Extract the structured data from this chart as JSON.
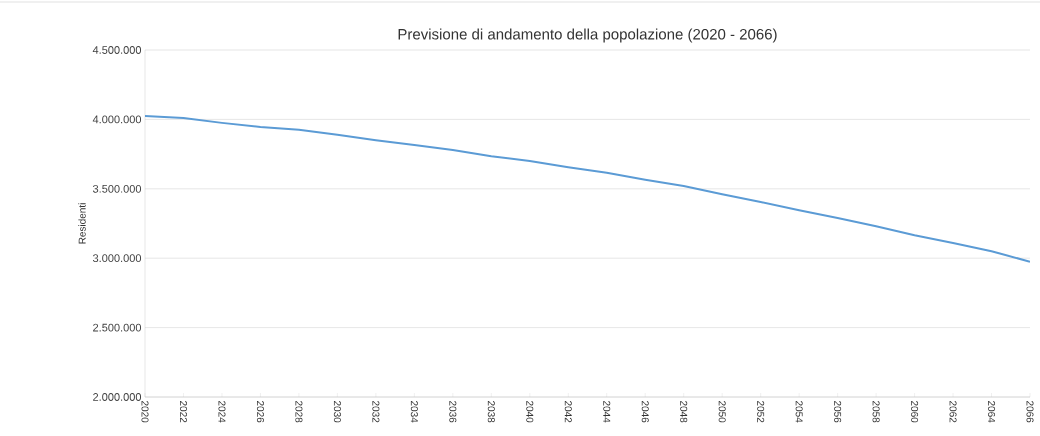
{
  "chart_data": {
    "type": "line",
    "title": "Previsione di andamento della popolazione (2020 - 2066)",
    "ylabel": "Residenti",
    "x": [
      2020,
      2022,
      2024,
      2026,
      2028,
      2030,
      2032,
      2034,
      2036,
      2038,
      2040,
      2042,
      2044,
      2046,
      2048,
      2050,
      2052,
      2054,
      2056,
      2058,
      2060,
      2062,
      2064,
      2066
    ],
    "series": [
      {
        "color": "#5b9bd5",
        "values": [
          4025000,
          4010000,
          3975000,
          3945000,
          3925000,
          3890000,
          3850000,
          3815000,
          3780000,
          3735000,
          3700000,
          3655000,
          3615000,
          3565000,
          3520000,
          3460000,
          3405000,
          3345000,
          3290000,
          3230000,
          3165000,
          3110000,
          3050000,
          2975000
        ]
      }
    ],
    "xlim": [
      2020,
      2066
    ],
    "xticks": [
      2020,
      2022,
      2024,
      2026,
      2028,
      2030,
      2032,
      2034,
      2036,
      2038,
      2040,
      2042,
      2044,
      2046,
      2048,
      2050,
      2052,
      2054,
      2056,
      2058,
      2060,
      2062,
      2064,
      2066
    ],
    "ylim": [
      2000000,
      4500000
    ],
    "yticks": [
      {
        "value": 2000000,
        "label": "2.000.000"
      },
      {
        "value": 2500000,
        "label": "2.500.000"
      },
      {
        "value": 3000000,
        "label": "3.000.000"
      },
      {
        "value": 3500000,
        "label": "3.500.000"
      },
      {
        "value": 4000000,
        "label": "4.000.000"
      },
      {
        "value": 4500000,
        "label": "4.500.000"
      }
    ],
    "grid": "y",
    "marker": "none",
    "line_style": "solid"
  }
}
